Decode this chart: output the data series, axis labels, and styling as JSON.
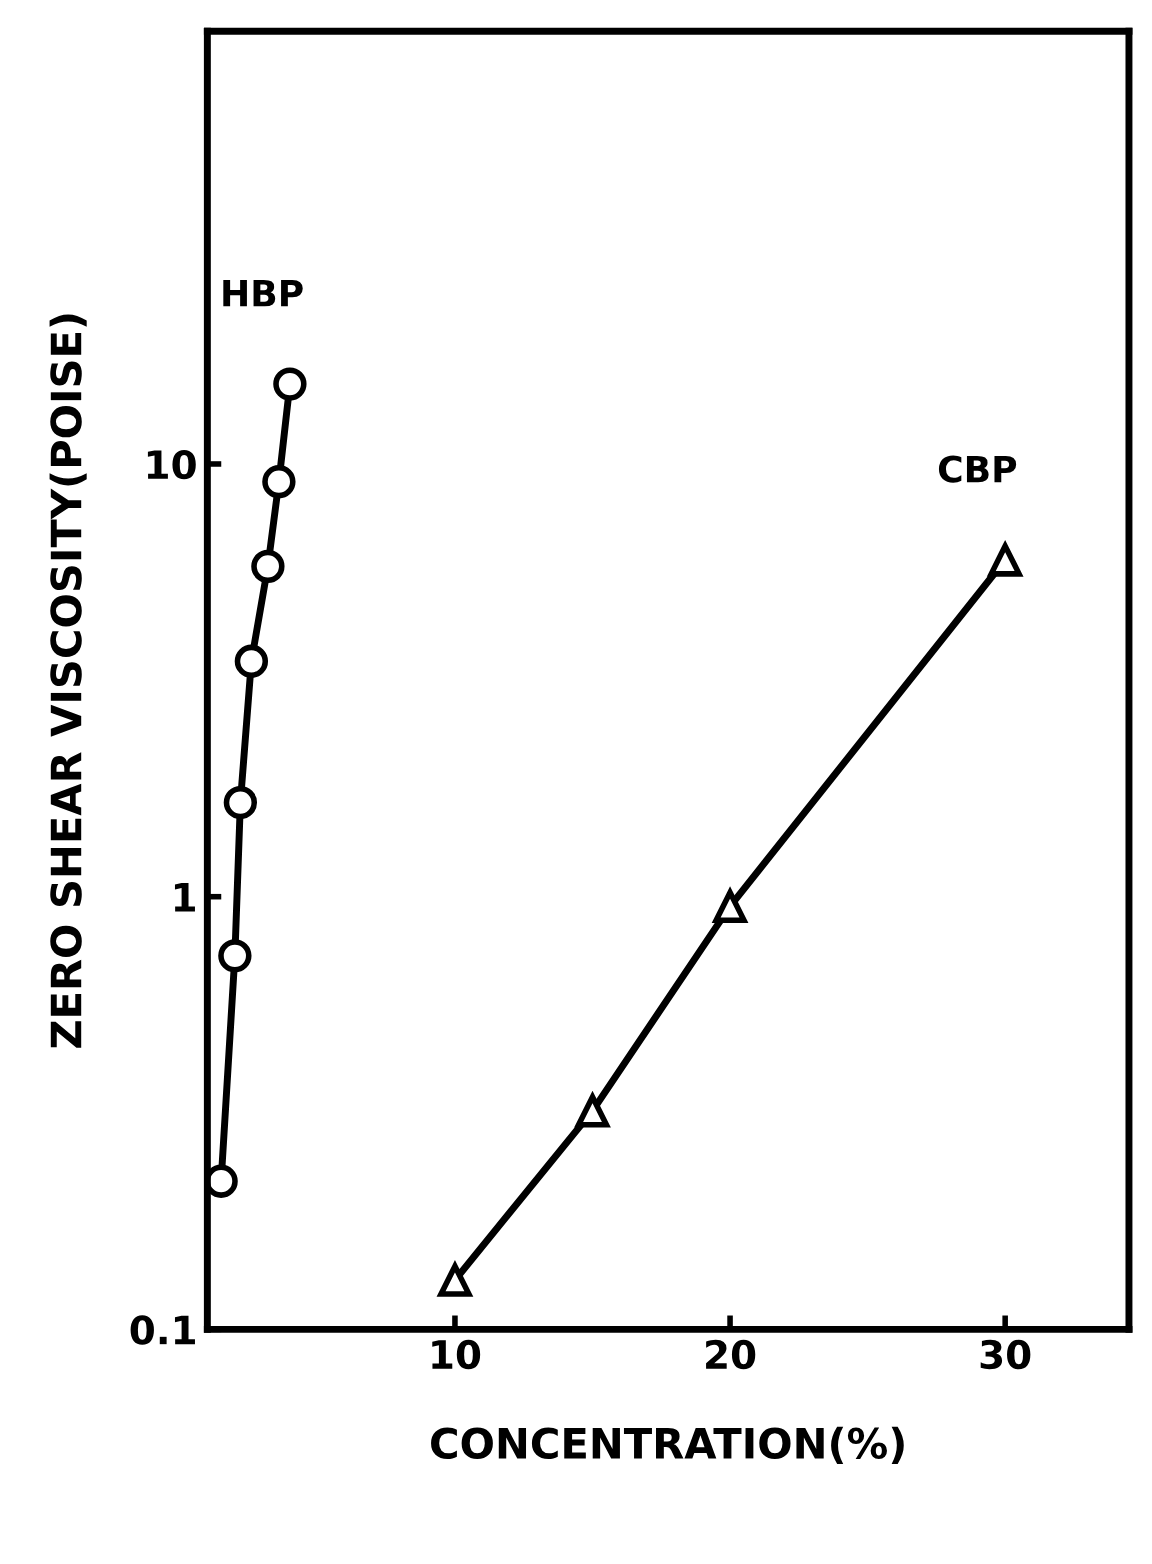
{
  "chart_data": {
    "type": "line",
    "xlabel": "CONCENTRATION(%)",
    "ylabel": "ZERO SHEAR VISCOSITY(POISE)",
    "log": "y",
    "xlim": [
      1,
      34.5
    ],
    "ylim": [
      0.1,
      100
    ],
    "xticks": [
      10,
      20,
      30
    ],
    "yticks": [
      0.1,
      1,
      10
    ],
    "grid": false,
    "legend": false,
    "series": [
      {
        "name": "HBP",
        "color": "#000000",
        "marker": "circle",
        "x": [
          1.5,
          2.0,
          2.2,
          2.6,
          3.2,
          3.6,
          4.0
        ],
        "values": [
          0.22,
          0.73,
          1.65,
          3.5,
          5.8,
          9.1,
          15.3
        ]
      },
      {
        "name": "CBP",
        "color": "#000000",
        "marker": "triangle",
        "x": [
          10,
          15,
          20,
          30
        ],
        "values": [
          0.13,
          0.32,
          0.95,
          6.0
        ]
      }
    ]
  }
}
